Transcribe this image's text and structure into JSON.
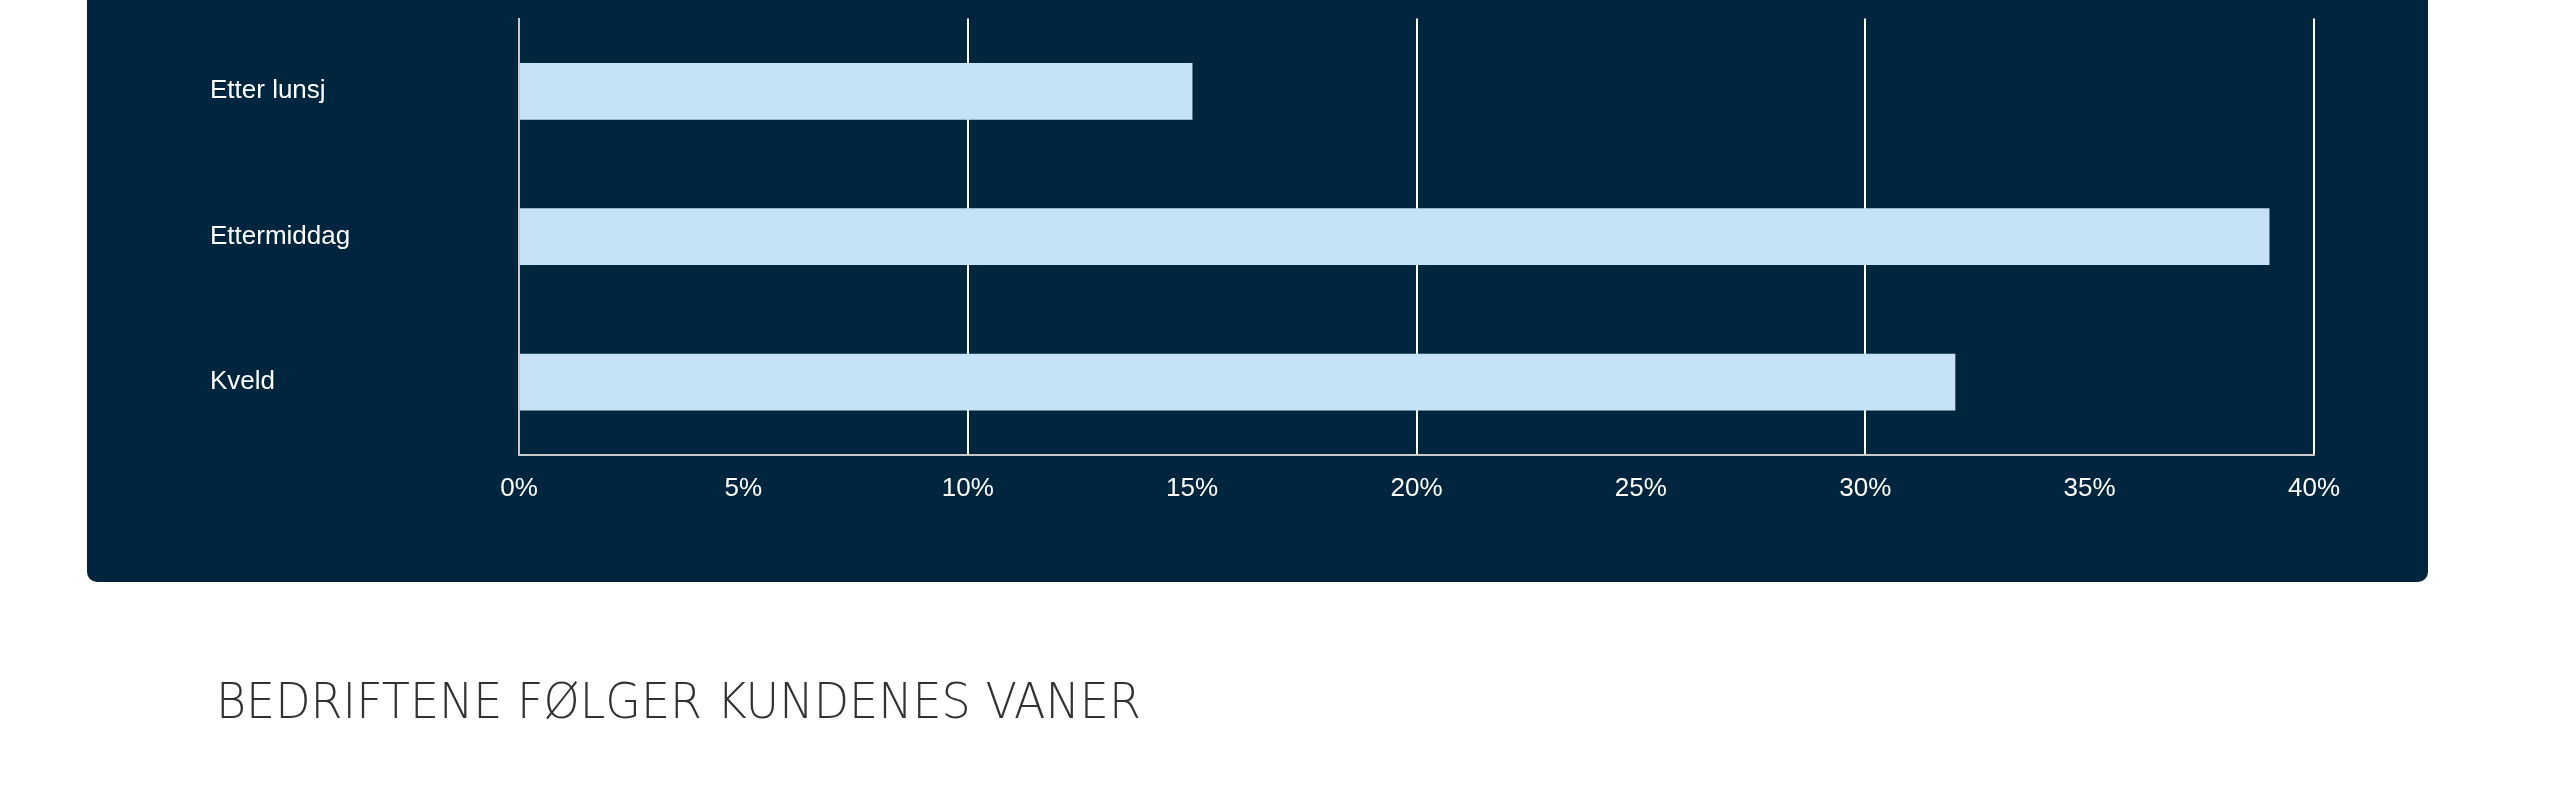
{
  "chart_data": {
    "type": "bar",
    "orientation": "horizontal",
    "categories": [
      "Etter lunsj",
      "Ettermiddag",
      "Kveld"
    ],
    "values": [
      15,
      39,
      32
    ],
    "color": "#c6e2f7",
    "xlim": [
      0,
      40
    ],
    "xticks": [
      {
        "value": 0,
        "label": "0%"
      },
      {
        "value": 5,
        "label": "5%"
      },
      {
        "value": 10,
        "label": "10%"
      },
      {
        "value": 15,
        "label": "15%"
      },
      {
        "value": 20,
        "label": "20%"
      },
      {
        "value": 25,
        "label": "25%"
      },
      {
        "value": 30,
        "label": "30%"
      },
      {
        "value": 35,
        "label": "35%"
      },
      {
        "value": 40,
        "label": "40%"
      }
    ],
    "grid": "x",
    "legend": false,
    "annotations": [
      "BEDRIFTENE FØLGER KUNDENES VANER"
    ]
  }
}
